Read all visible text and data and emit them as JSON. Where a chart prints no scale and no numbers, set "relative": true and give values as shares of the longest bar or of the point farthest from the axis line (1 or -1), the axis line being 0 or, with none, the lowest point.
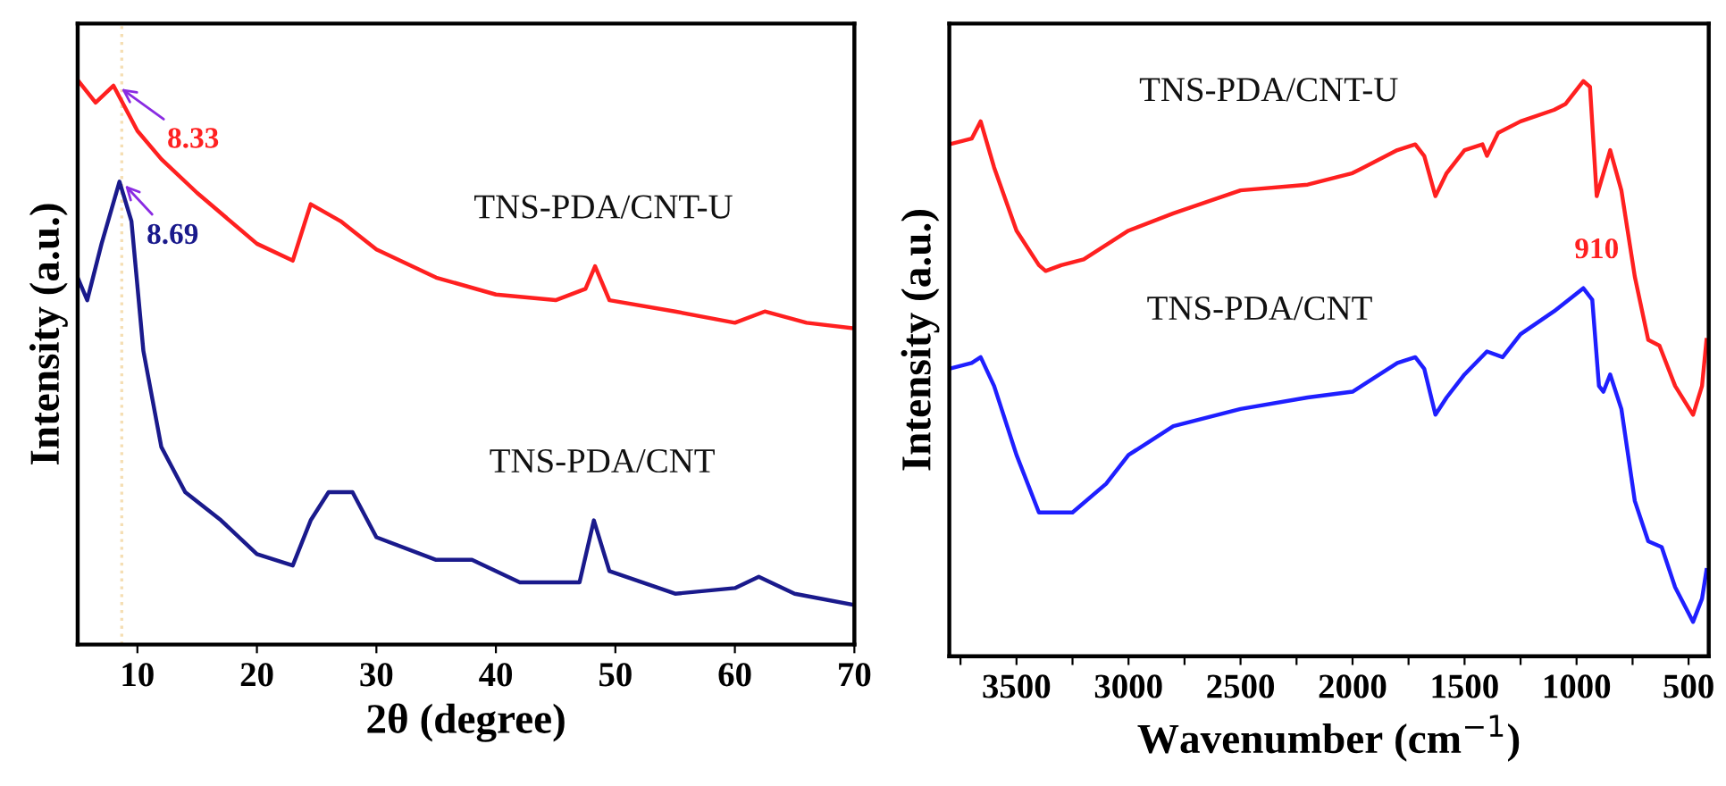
{
  "chart_data": [
    {
      "type": "line",
      "relative": true,
      "xlabel": "2θ (degree)",
      "ylabel": "Intensity (a.u.)",
      "xlim": [
        5,
        70
      ],
      "xticks": [
        10,
        20,
        30,
        40,
        50,
        60,
        70
      ],
      "grid": false,
      "legend": false,
      "tick_labels": "x",
      "series": [
        {
          "name": "TNS-PDA/CNT-U",
          "color": "#ff2020",
          "x": [
            5,
            6.5,
            8,
            10,
            12,
            15,
            20,
            23,
            24.5,
            27,
            30,
            35,
            40,
            45,
            47.5,
            48.3,
            49.5,
            55,
            60,
            62.5,
            66,
            70
          ],
          "values": [
            1.0,
            0.96,
            0.99,
            0.91,
            0.86,
            0.8,
            0.71,
            0.68,
            0.78,
            0.75,
            0.7,
            0.65,
            0.62,
            0.61,
            0.63,
            0.67,
            0.61,
            0.59,
            0.57,
            0.59,
            0.57,
            0.56
          ]
        },
        {
          "name": "TNS-PDA/CNT",
          "color": "#1a1a8c",
          "x": [
            5,
            5.8,
            7,
            8.5,
            9.5,
            10.5,
            12,
            14,
            17,
            20,
            23,
            24.5,
            26,
            28,
            30,
            35,
            38,
            42,
            47,
            48.2,
            49.5,
            55,
            60,
            62,
            65,
            70
          ],
          "values": [
            0.65,
            0.61,
            0.71,
            0.82,
            0.75,
            0.52,
            0.35,
            0.27,
            0.22,
            0.16,
            0.14,
            0.22,
            0.27,
            0.27,
            0.19,
            0.15,
            0.15,
            0.11,
            0.11,
            0.22,
            0.13,
            0.09,
            0.1,
            0.12,
            0.09,
            0.07
          ]
        }
      ],
      "ref_lines": [
        {
          "axis": "x",
          "value": 8.69,
          "color": "#f5deb3",
          "line_style": "dotted"
        }
      ],
      "annotations": [
        {
          "text": "8.33",
          "x": 8.33,
          "y": 0.99
        },
        {
          "text": "8.69",
          "x": 8.69,
          "y": 0.82
        }
      ]
    },
    {
      "type": "line",
      "relative": true,
      "xlabel": "Wavenumber (cm$^{−1}$)",
      "ylabel": "Intensity (a.u.)",
      "xlim": [
        3800,
        410
      ],
      "xticks": [
        {
          "value": 3750,
          "label": null
        },
        3500,
        {
          "value": 3250,
          "label": null
        },
        3000,
        {
          "value": 2750,
          "label": null
        },
        2500,
        {
          "value": 2250,
          "label": null
        },
        2000,
        {
          "value": 1750,
          "label": null
        },
        1500,
        {
          "value": 1250,
          "label": null
        },
        1000,
        {
          "value": 750,
          "label": null
        },
        500
      ],
      "grid": false,
      "legend": false,
      "tick_labels": "x",
      "series": [
        {
          "name": "TNS-PDA/CNT-U",
          "color": "#ff2020",
          "x": [
            3800,
            3700,
            3660,
            3600,
            3500,
            3400,
            3370,
            3300,
            3200,
            3000,
            2800,
            2500,
            2200,
            2000,
            1800,
            1720,
            1680,
            1630,
            1580,
            1500,
            1420,
            1400,
            1350,
            1250,
            1100,
            1050,
            970,
            940,
            910,
            880,
            850,
            800,
            740,
            680,
            630,
            560,
            480,
            440,
            420
          ],
          "values": [
            0.89,
            0.9,
            0.93,
            0.85,
            0.74,
            0.68,
            0.67,
            0.68,
            0.69,
            0.74,
            0.77,
            0.81,
            0.82,
            0.84,
            0.88,
            0.89,
            0.87,
            0.8,
            0.84,
            0.88,
            0.89,
            0.87,
            0.91,
            0.93,
            0.95,
            0.96,
            1.0,
            0.99,
            0.8,
            0.84,
            0.88,
            0.81,
            0.66,
            0.55,
            0.54,
            0.47,
            0.42,
            0.47,
            0.55
          ]
        },
        {
          "name": "TNS-PDA/CNT",
          "color": "#1f1fff",
          "x": [
            3800,
            3700,
            3660,
            3600,
            3500,
            3400,
            3350,
            3250,
            3100,
            3000,
            2800,
            2500,
            2200,
            2000,
            1800,
            1720,
            1680,
            1630,
            1580,
            1500,
            1400,
            1330,
            1250,
            1100,
            970,
            930,
            900,
            880,
            850,
            800,
            740,
            680,
            620,
            560,
            480,
            440,
            420
          ],
          "values": [
            0.5,
            0.51,
            0.52,
            0.47,
            0.35,
            0.25,
            0.25,
            0.25,
            0.3,
            0.35,
            0.4,
            0.43,
            0.45,
            0.46,
            0.51,
            0.52,
            0.5,
            0.42,
            0.45,
            0.49,
            0.53,
            0.52,
            0.56,
            0.6,
            0.64,
            0.62,
            0.47,
            0.46,
            0.49,
            0.43,
            0.27,
            0.2,
            0.19,
            0.12,
            0.06,
            0.1,
            0.15
          ]
        }
      ],
      "annotations": [
        {
          "text": "910",
          "x": 910,
          "y": 0.8
        }
      ]
    }
  ]
}
